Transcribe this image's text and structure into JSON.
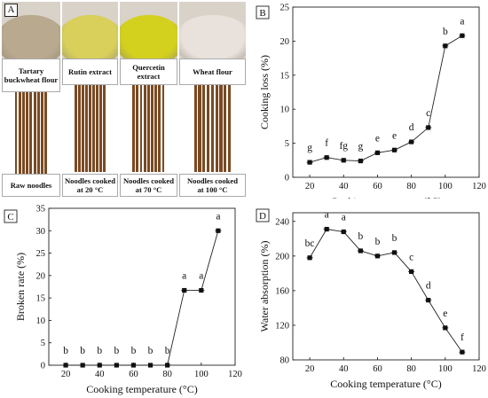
{
  "panel_a": {
    "letter": "A",
    "top_row_captions": [
      "Tartary\nbuckwheat flour",
      "Rutin extract",
      "Quercetin extract",
      "Wheat flour"
    ],
    "bottom_row_captions": [
      "Raw noodles",
      "Noodles cooked\nat 20 °C",
      "Noodles cooked\nat 70 °C",
      "Noodles cooked\nat 100 °C"
    ],
    "powder_colors": [
      "#b9a98e",
      "#d9cf5b",
      "#d4d01e",
      "#e9e2dc"
    ],
    "noodle_color": "#7a4a22"
  },
  "chart_data": [
    {
      "letter": "B",
      "type": "line",
      "xlabel": "Cooking temperature (°C)",
      "ylabel": "Cooking loss (%)",
      "xlim": [
        10,
        120
      ],
      "ylim": [
        0,
        25
      ],
      "xticks": [
        20,
        40,
        60,
        80,
        100,
        120
      ],
      "yticks": [
        0,
        5,
        10,
        15,
        20,
        25
      ],
      "x": [
        20,
        30,
        40,
        50,
        60,
        70,
        80,
        90,
        100,
        110
      ],
      "y": [
        2.2,
        2.9,
        2.5,
        2.4,
        3.6,
        4.0,
        5.2,
        7.3,
        19.3,
        20.8
      ],
      "letters": [
        "g",
        "f",
        "fg",
        "g",
        "e",
        "e",
        "d",
        "c",
        "b",
        "a"
      ]
    },
    {
      "letter": "C",
      "type": "line",
      "xlabel": "Cooking temperature (°C)",
      "ylabel": "Broken rate (%)",
      "xlim": [
        10,
        120
      ],
      "ylim": [
        0,
        35
      ],
      "xticks": [
        20,
        40,
        60,
        80,
        100,
        120
      ],
      "yticks": [
        0,
        5,
        10,
        15,
        20,
        25,
        30,
        35
      ],
      "x": [
        20,
        30,
        40,
        50,
        60,
        70,
        80,
        90,
        100,
        110
      ],
      "y": [
        0,
        0,
        0,
        0,
        0,
        0,
        0,
        16.7,
        16.7,
        30.0
      ],
      "letters": [
        "b",
        "b",
        "b",
        "b",
        "b",
        "b",
        "b",
        "a",
        "a",
        "a"
      ]
    },
    {
      "letter": "D",
      "type": "line",
      "xlabel": "Cooking temperature (°C)",
      "ylabel": "Water absorption (%)",
      "xlim": [
        10,
        120
      ],
      "ylim": [
        80,
        250
      ],
      "xticks": [
        20,
        40,
        60,
        80,
        100,
        120
      ],
      "yticks": [
        80,
        120,
        160,
        200,
        240
      ],
      "x": [
        20,
        30,
        40,
        50,
        60,
        70,
        80,
        90,
        100,
        110
      ],
      "y": [
        198,
        231,
        228,
        206,
        200,
        204,
        182,
        149,
        117,
        89
      ],
      "letters": [
        "bc",
        "a",
        "a",
        "b",
        "b",
        "b",
        "c",
        "d",
        "e",
        "f"
      ]
    }
  ]
}
